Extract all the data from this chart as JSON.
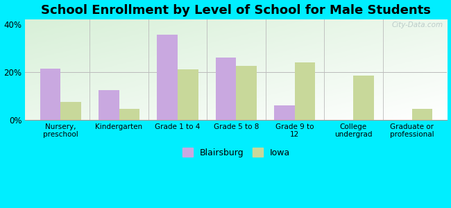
{
  "title": "School Enrollment by Level of School for Male Students",
  "categories": [
    "Nursery,\npreschool",
    "Kindergarten",
    "Grade 1 to 4",
    "Grade 5 to 8",
    "Grade 9 to\n12",
    "College\nundergrad",
    "Graduate or\nprofessional"
  ],
  "blairsburg": [
    21.5,
    12.5,
    35.5,
    26.0,
    6.0,
    0.0,
    0.0
  ],
  "iowa": [
    7.5,
    4.5,
    21.0,
    22.5,
    24.0,
    18.5,
    4.5
  ],
  "blairsburg_color": "#c9a8e0",
  "iowa_color": "#c8d89a",
  "background_outer": "#00eeff",
  "ylim": [
    0,
    42
  ],
  "yticks": [
    0,
    20,
    40
  ],
  "ytick_labels": [
    "0%",
    "20%",
    "40%"
  ],
  "bar_width": 0.35,
  "legend_labels": [
    "Blairsburg",
    "Iowa"
  ],
  "title_fontsize": 13,
  "axis_fontsize": 7.5,
  "legend_fontsize": 9,
  "watermark": "City-Data.com"
}
